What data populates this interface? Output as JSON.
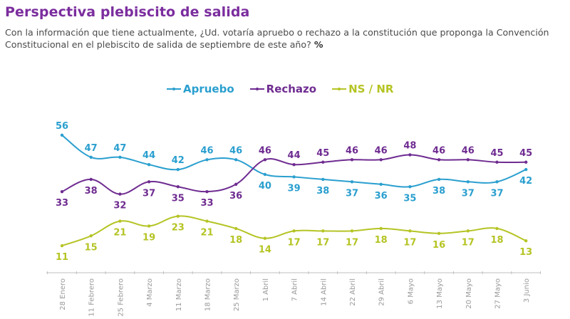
{
  "header": {
    "title": "Perspectiva plebiscito de salida",
    "question": "Con la información que tiene actualmente, ¿Ud. votaría apruebo o rechazo a la constitución que proponga la Convención Constitucional en el plebiscito de salida de septiembre de este año?",
    "unit": "%"
  },
  "chart_data": {
    "type": "line",
    "title": "Perspectiva plebiscito de salida",
    "xlabel": "",
    "ylabel": "%",
    "ylim": [
      0,
      60
    ],
    "grid": false,
    "legend_position": "top-center",
    "categories": [
      "28 Enero",
      "11 Febrero",
      "25 Febrero",
      "4 Marzo",
      "11 Marzo",
      "18 Marzo",
      "25 Marzo",
      "1 Abril",
      "7 Abril",
      "14 Abril",
      "22 Abril",
      "29 Abril",
      "6 Mayo",
      "13 Mayo",
      "20 Mayo",
      "27 Mayo",
      "3 Junio"
    ],
    "series": [
      {
        "name": "Apruebo",
        "color": "#2a9fcf",
        "values": [
          56,
          47,
          47,
          44,
          42,
          46,
          46,
          40,
          39,
          38,
          37,
          36,
          35,
          38,
          37,
          37,
          42
        ],
        "label_positions": [
          "above",
          "above",
          "above",
          "above",
          "above",
          "above",
          "above",
          "below",
          "below",
          "below",
          "below",
          "below",
          "below",
          "below",
          "below",
          "below",
          "below"
        ]
      },
      {
        "name": "Rechazo",
        "color": "#6f2c91",
        "values": [
          33,
          38,
          32,
          37,
          35,
          33,
          36,
          46,
          44,
          45,
          46,
          46,
          48,
          46,
          46,
          45,
          45
        ],
        "label_positions": [
          "below",
          "below",
          "below",
          "below",
          "below",
          "below",
          "below",
          "above",
          "above",
          "above",
          "above",
          "above",
          "above",
          "above",
          "above",
          "above",
          "above"
        ]
      },
      {
        "name": "NS / NR",
        "color": "#b5c424",
        "values": [
          11,
          15,
          21,
          19,
          23,
          21,
          18,
          14,
          17,
          17,
          17,
          18,
          17,
          16,
          17,
          18,
          13
        ],
        "label_positions": [
          "below",
          "below",
          "below",
          "below",
          "below",
          "below",
          "below",
          "below",
          "below",
          "below",
          "below",
          "below",
          "below",
          "below",
          "below",
          "below",
          "below"
        ]
      }
    ]
  }
}
